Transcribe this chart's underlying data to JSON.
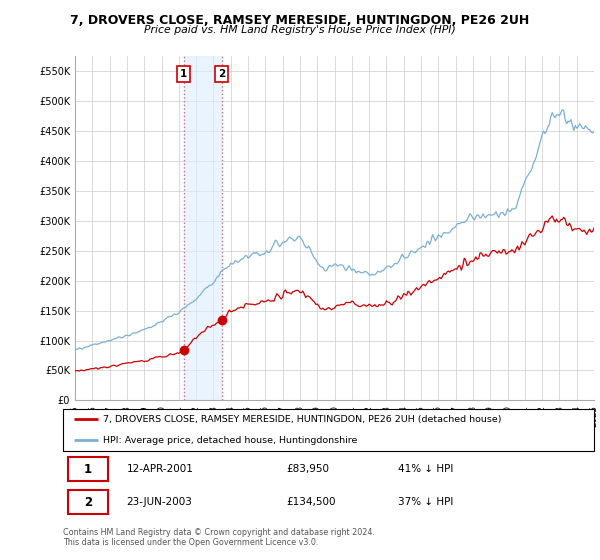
{
  "title": "7, DROVERS CLOSE, RAMSEY MERESIDE, HUNTINGDON, PE26 2UH",
  "subtitle": "Price paid vs. HM Land Registry's House Price Index (HPI)",
  "legend_label_red": "7, DROVERS CLOSE, RAMSEY MERESIDE, HUNTINGDON, PE26 2UH (detached house)",
  "legend_label_blue": "HPI: Average price, detached house, Huntingdonshire",
  "sale1_date": "12-APR-2001",
  "sale1_price": "£83,950",
  "sale1_hpi": "41% ↓ HPI",
  "sale2_date": "23-JUN-2003",
  "sale2_price": "£134,500",
  "sale2_hpi": "37% ↓ HPI",
  "footer": "Contains HM Land Registry data © Crown copyright and database right 2024.\nThis data is licensed under the Open Government Licence v3.0.",
  "ylim": [
    0,
    575000
  ],
  "yticks": [
    0,
    50000,
    100000,
    150000,
    200000,
    250000,
    300000,
    350000,
    400000,
    450000,
    500000,
    550000
  ],
  "ytick_labels": [
    "£0",
    "£50K",
    "£100K",
    "£150K",
    "£200K",
    "£250K",
    "£300K",
    "£350K",
    "£400K",
    "£450K",
    "£500K",
    "£550K"
  ],
  "red_color": "#cc0000",
  "blue_color": "#7ab0d4",
  "annotation_bg": "#ddeeff",
  "sale1_x": 2001.28,
  "sale1_y": 83950,
  "sale2_x": 2003.48,
  "sale2_y": 134500,
  "xmin": 1995,
  "xmax": 2025
}
